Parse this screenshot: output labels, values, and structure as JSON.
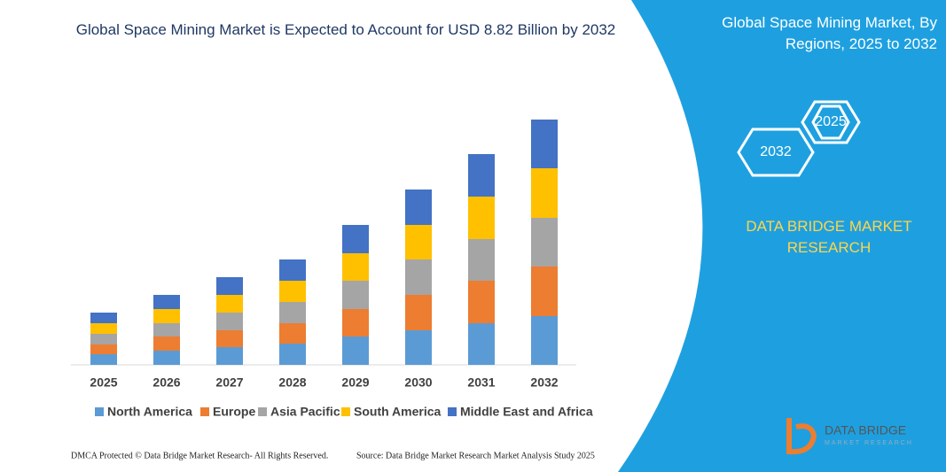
{
  "chart_data": {
    "type": "stacked_bar",
    "title": "Global Space Mining Market is Expected to Account for USD 8.82 Billion by 2032",
    "categories": [
      "2025",
      "2026",
      "2027",
      "2028",
      "2029",
      "2030",
      "2031",
      "2032"
    ],
    "series": [
      {
        "name": "North America",
        "color": "#5b9bd5",
        "values": [
          12,
          16,
          20,
          24,
          32,
          39,
          47,
          55
        ]
      },
      {
        "name": "Europe",
        "color": "#ed7d31",
        "values": [
          11,
          16,
          19,
          23,
          31,
          40,
          48,
          56
        ]
      },
      {
        "name": "Asia Pacific",
        "color": "#a5a5a5",
        "values": [
          12,
          15,
          20,
          24,
          32,
          40,
          47,
          55
        ]
      },
      {
        "name": "South America",
        "color": "#ffc000",
        "values": [
          12,
          16,
          20,
          24,
          31,
          39,
          48,
          56
        ]
      },
      {
        "name": "Middle East and Africa",
        "color": "#4472c4",
        "values": [
          12,
          16,
          20,
          24,
          32,
          40,
          48,
          55
        ]
      }
    ],
    "ylim": [
      0,
      300
    ],
    "legend": "bottom"
  },
  "panel": {
    "title": "Global Space Mining Market, By Regions, 2025 to 2032",
    "hexagons": [
      "2025",
      "2032"
    ],
    "brand": "DATA BRIDGE MARKET RESEARCH"
  },
  "logo": {
    "name": "DATA BRIDGE",
    "tagline": "MARKET RESEARCH"
  },
  "footer": {
    "left": "DMCA Protected © Data Bridge Market Research- All Rights Reserved.",
    "right": "Source: Data Bridge Market Research Market Analysis Study 2025"
  }
}
